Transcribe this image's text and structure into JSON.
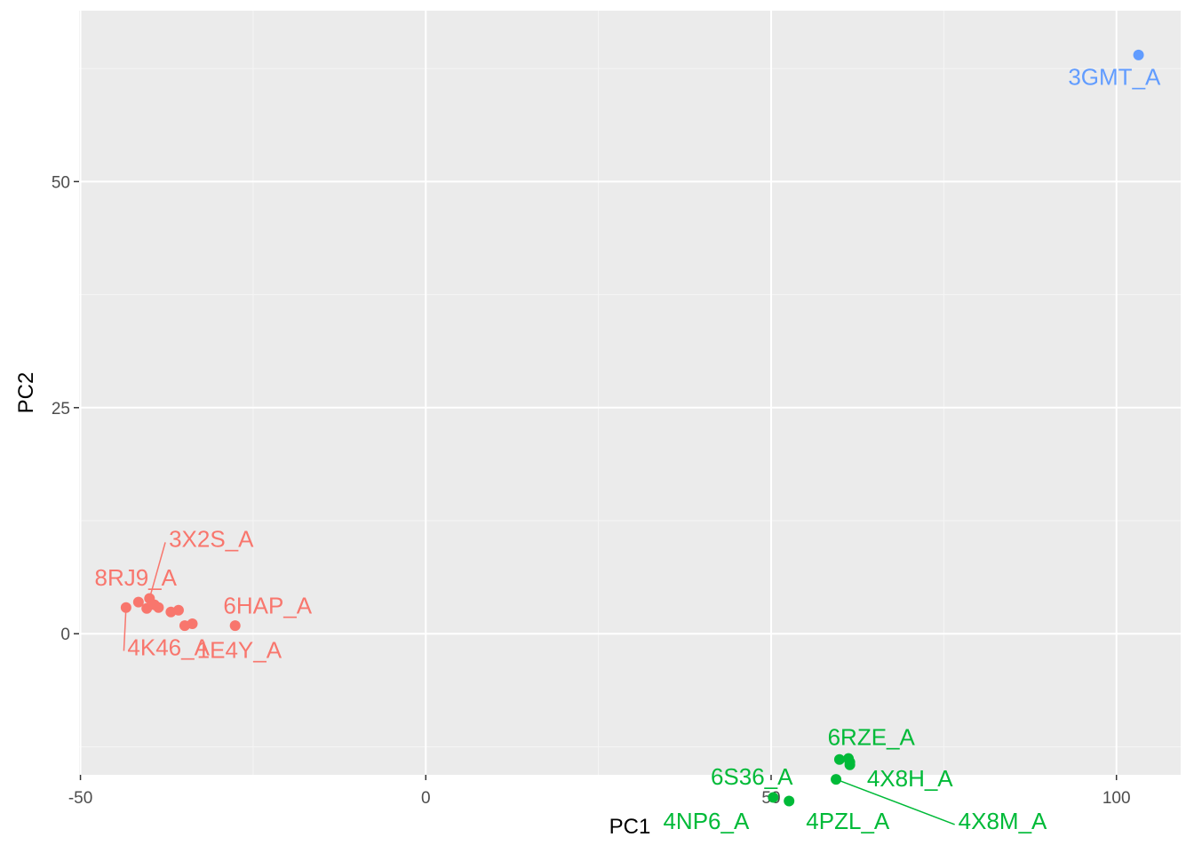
{
  "chart_data": {
    "type": "scatter",
    "title": "",
    "xlabel": "PC1",
    "ylabel": "PC2",
    "xlim": [
      -50.2,
      109.3
    ],
    "ylim": [
      -15.6,
      68.9
    ],
    "x_ticks": [
      -50,
      0,
      50,
      100
    ],
    "y_ticks": [
      0,
      25,
      50
    ],
    "x_tick_labels": [
      "-50",
      "0",
      "50",
      "100"
    ],
    "y_tick_labels": [
      "0",
      "25",
      "50"
    ],
    "grid": true,
    "legend": "none",
    "groups": [
      {
        "color": "#F8766D",
        "points": [
          {
            "x": -43.4,
            "y": 2.9
          },
          {
            "x": -41.6,
            "y": 3.5
          },
          {
            "x": -40.4,
            "y": 2.8
          },
          {
            "x": -40.0,
            "y": 3.9
          },
          {
            "x": -39.3,
            "y": 3.2
          },
          {
            "x": -38.7,
            "y": 2.9
          },
          {
            "x": -36.9,
            "y": 2.4
          },
          {
            "x": -35.8,
            "y": 2.6
          },
          {
            "x": -34.9,
            "y": 0.9
          },
          {
            "x": -33.8,
            "y": 1.1
          },
          {
            "x": -27.6,
            "y": 0.9
          }
        ],
        "labels": [
          {
            "text": "3X2S_A",
            "x": -37.2,
            "y": 10.5,
            "px": -40.0,
            "py": 3.9
          },
          {
            "text": "8RJ9_A",
            "x": -42.0,
            "y": 6.2,
            "px": null,
            "py": null
          },
          {
            "text": "6HAP_A",
            "x": -22.9,
            "y": 3.1,
            "px": null,
            "py": null
          },
          {
            "text": "4K46_A",
            "x": -43.2,
            "y": -1.5,
            "px": -43.4,
            "py": 2.9
          },
          {
            "text": "1E4Y_A",
            "x": -27.0,
            "y": -1.8,
            "px": null,
            "py": null
          }
        ]
      },
      {
        "color": "#00BA38",
        "points": [
          {
            "x": 50.3,
            "y": -18.1
          },
          {
            "x": 52.6,
            "y": -18.5
          },
          {
            "x": 59.4,
            "y": -16.1
          },
          {
            "x": 59.9,
            "y": -13.9
          },
          {
            "x": 61.2,
            "y": -13.8
          },
          {
            "x": 61.4,
            "y": -14.2
          },
          {
            "x": 61.4,
            "y": -14.5
          }
        ],
        "labels": [
          {
            "text": "6RZE_A",
            "x": 64.5,
            "y": -11.4,
            "px": null,
            "py": null
          },
          {
            "text": "6S36_A",
            "x": 47.2,
            "y": -15.8,
            "px": null,
            "py": null
          },
          {
            "text": "4X8H_A",
            "x": 70.1,
            "y": -16.0,
            "px": null,
            "py": null
          },
          {
            "text": "4NP6_A",
            "x": 40.6,
            "y": -20.7,
            "px": null,
            "py": null
          },
          {
            "text": "4PZL_A",
            "x": 61.1,
            "y": -20.7,
            "px": null,
            "py": null
          },
          {
            "text": "4X8M_A",
            "x": 77.1,
            "y": -20.7,
            "px": 59.4,
            "py": -16.1
          }
        ]
      },
      {
        "color": "#619CFF",
        "points": [
          {
            "x": 103.2,
            "y": 64.0
          }
        ],
        "labels": [
          {
            "text": "3GMT_A",
            "x": 99.7,
            "y": 61.6,
            "px": null,
            "py": null
          }
        ]
      }
    ]
  }
}
